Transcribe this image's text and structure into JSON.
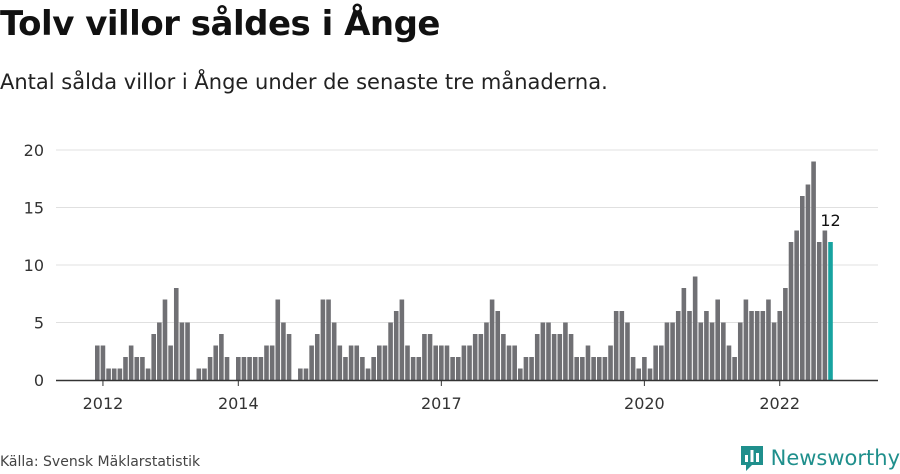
{
  "header": {
    "title": "Tolv villor såldes i Ånge",
    "subtitle": "Antal sålda villor i Ånge under de senaste tre månaderna."
  },
  "footer": {
    "source": "Källa: Svensk Mäklarstatistik",
    "brand": "Newsworthy"
  },
  "colors": {
    "bar": "#707074",
    "highlight": "#17a3a0",
    "grid": "#e0e0e0",
    "axis": "#333333",
    "brand": "#1f8f8c"
  },
  "chart_data": {
    "type": "bar",
    "title": "Tolv villor såldes i Ånge",
    "subtitle": "Antal sålda villor i Ånge under de senaste tre månaderna.",
    "xlabel": "",
    "ylabel": "",
    "ylim": [
      0,
      20
    ],
    "yticks": [
      0,
      5,
      10,
      15,
      20
    ],
    "grid": true,
    "x_tick_labels": [
      {
        "label": "2012",
        "index": 1
      },
      {
        "label": "2014",
        "index": 25
      },
      {
        "label": "2017",
        "index": 61
      },
      {
        "label": "2020",
        "index": 97
      },
      {
        "label": "2022",
        "index": 121
      }
    ],
    "values": [
      3,
      3,
      1,
      1,
      1,
      2,
      3,
      2,
      2,
      1,
      4,
      5,
      7,
      3,
      8,
      5,
      5,
      0,
      1,
      1,
      2,
      3,
      4,
      2,
      0,
      2,
      2,
      2,
      2,
      2,
      3,
      3,
      7,
      5,
      4,
      0,
      1,
      1,
      3,
      4,
      7,
      7,
      5,
      3,
      2,
      3,
      3,
      2,
      1,
      2,
      3,
      3,
      5,
      6,
      7,
      3,
      2,
      2,
      4,
      4,
      3,
      3,
      3,
      2,
      2,
      3,
      3,
      4,
      4,
      5,
      7,
      6,
      4,
      3,
      3,
      1,
      2,
      2,
      4,
      5,
      5,
      4,
      4,
      5,
      4,
      2,
      2,
      3,
      2,
      2,
      2,
      3,
      6,
      6,
      5,
      2,
      1,
      2,
      1,
      3,
      3,
      5,
      5,
      6,
      8,
      6,
      9,
      5,
      6,
      5,
      7,
      5,
      3,
      2,
      5,
      7,
      6,
      6,
      6,
      7,
      5,
      6,
      8,
      12,
      13,
      16,
      17,
      19,
      12,
      13,
      12
    ],
    "highlight_index": 130,
    "annotation": {
      "label": "12",
      "index": 130
    }
  }
}
